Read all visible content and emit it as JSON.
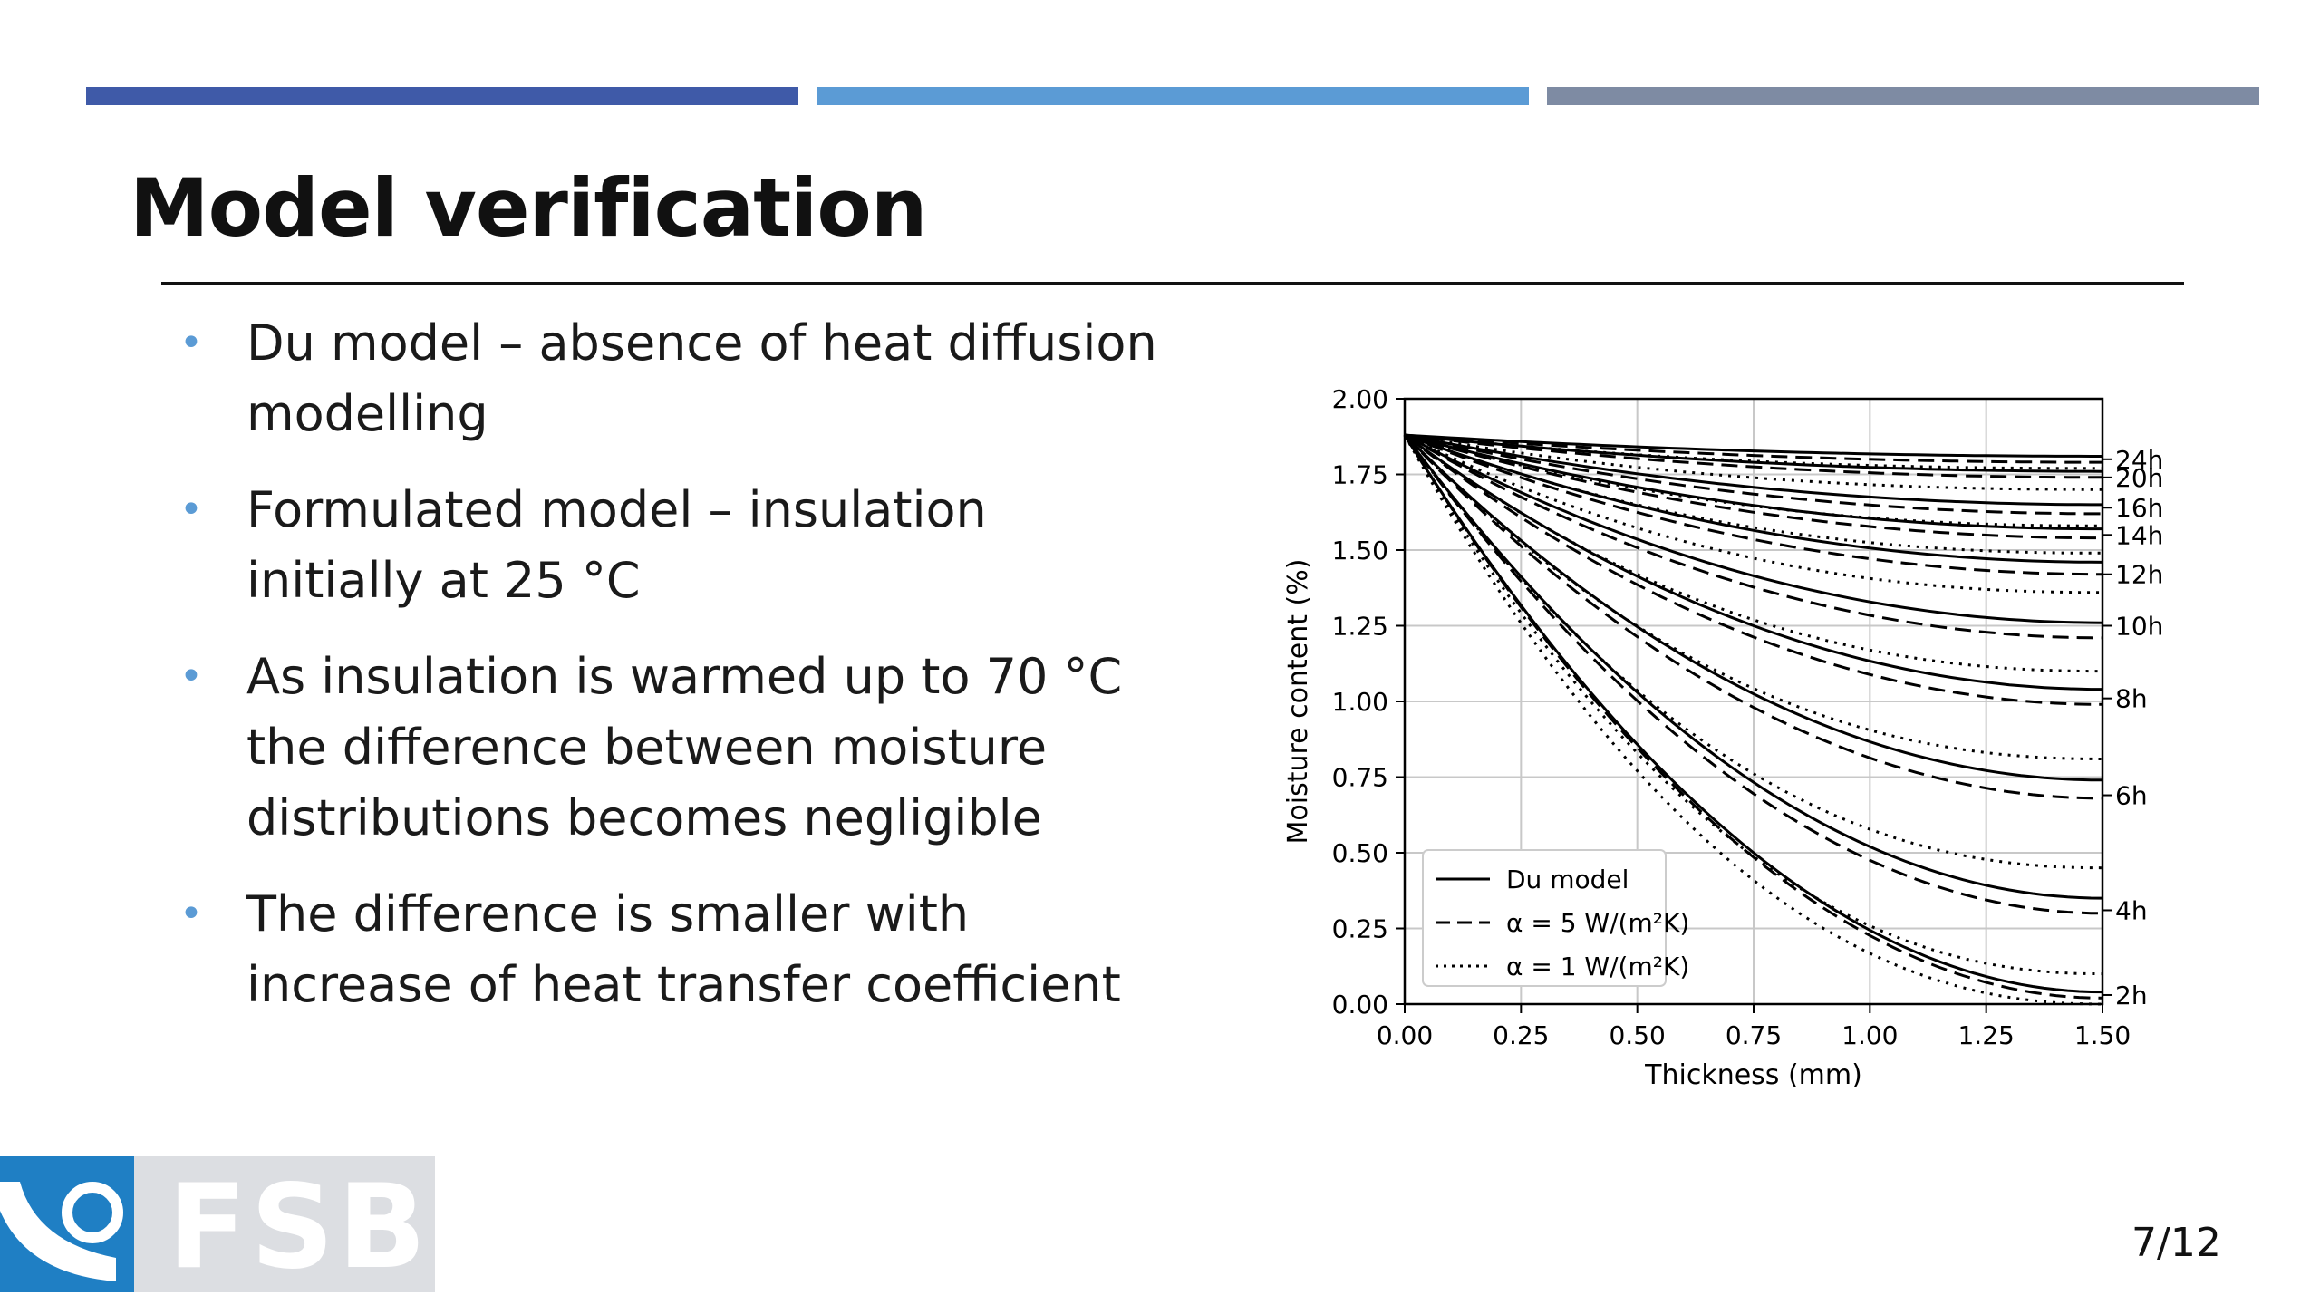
{
  "slide": {
    "title": "Model verification",
    "page_number": "7/12",
    "logo_text": "FSB",
    "accent_colors": [
      "#3f5aa8",
      "#5b9bd5",
      "#7e8ba3"
    ]
  },
  "bullets": [
    {
      "lines": [
        "Du model – absence of heat diffusion",
        "modelling"
      ]
    },
    {
      "lines": [
        "Formulated model – insulation",
        "initially at 25 °C"
      ]
    },
    {
      "lines": [
        "As insulation is warmed up to 70 °C",
        "the difference between moisture",
        "distributions becomes negligible"
      ]
    },
    {
      "lines": [
        "The difference is smaller with",
        "increase of heat transfer coefficient"
      ]
    }
  ],
  "chart_data": {
    "type": "line",
    "xlabel": "Thickness (mm)",
    "ylabel": "Moisture content (%)",
    "xlim": [
      0,
      1.5
    ],
    "ylim": [
      0,
      2.0
    ],
    "xticks": [
      "0.00",
      "0.25",
      "0.50",
      "0.75",
      "1.00",
      "1.25",
      "1.50"
    ],
    "yticks": [
      "0.00",
      "0.25",
      "0.50",
      "0.75",
      "1.00",
      "1.25",
      "1.50",
      "1.75",
      "2.00"
    ],
    "grid": true,
    "legend_position": "lower-left",
    "legend": [
      {
        "label": "Du model",
        "style": "solid"
      },
      {
        "label": "α = 5 W/(m²K)",
        "style": "dashed"
      },
      {
        "label": "α = 1 W/(m²K)",
        "style": "dotted"
      }
    ],
    "initial_value": 1.88,
    "end_labels": [
      {
        "text": "24h",
        "y": 1.8
      },
      {
        "text": "20h",
        "y": 1.74
      },
      {
        "text": "16h",
        "y": 1.64
      },
      {
        "text": "14h",
        "y": 1.55
      },
      {
        "text": "12h",
        "y": 1.42
      },
      {
        "text": "10h",
        "y": 1.25
      },
      {
        "text": "8h",
        "y": 1.01
      },
      {
        "text": "6h",
        "y": 0.69
      },
      {
        "text": "4h",
        "y": 0.31
      },
      {
        "text": "2h",
        "y": 0.03
      }
    ],
    "series": [
      {
        "time": "24h",
        "du": 1.81,
        "a5": 1.79,
        "a1": 1.77
      },
      {
        "time": "20h",
        "du": 1.76,
        "a5": 1.74,
        "a1": 1.7
      },
      {
        "time": "16h",
        "du": 1.65,
        "a5": 1.62,
        "a1": 1.58
      },
      {
        "time": "14h",
        "du": 1.57,
        "a5": 1.54,
        "a1": 1.49
      },
      {
        "time": "12h",
        "du": 1.46,
        "a5": 1.42,
        "a1": 1.36
      },
      {
        "time": "10h",
        "du": 1.26,
        "a5": 1.21,
        "a1": 1.1
      },
      {
        "time": "8h",
        "du": 1.04,
        "a5": 0.99,
        "a1": 0.81
      },
      {
        "time": "6h",
        "du": 0.74,
        "a5": 0.68,
        "a1": 0.45
      },
      {
        "time": "4h",
        "du": 0.35,
        "a5": 0.3,
        "a1": 0.1
      },
      {
        "time": "2h",
        "du": 0.04,
        "a5": 0.02,
        "a1": 0.0
      }
    ]
  }
}
